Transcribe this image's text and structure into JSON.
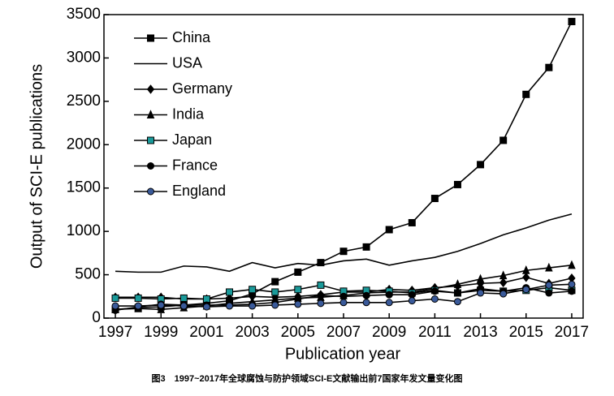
{
  "chart_data": {
    "type": "line",
    "caption": "图3　1997~2017年全球腐蚀与防护领域SCI-E文献输出前7国家年发文量变化图",
    "x_label": "Publication year",
    "y_label": "Output of SCI-E publications",
    "x": [
      1997,
      1998,
      1999,
      2000,
      2001,
      2002,
      2003,
      2004,
      2005,
      2006,
      2007,
      2008,
      2009,
      2010,
      2011,
      2012,
      2013,
      2014,
      2015,
      2016,
      2017
    ],
    "xlim": [
      1996.5,
      2017.5
    ],
    "xticks": [
      1997,
      1999,
      2001,
      2003,
      2005,
      2007,
      2009,
      2011,
      2013,
      2015,
      2017
    ],
    "ylim": [
      0,
      3500
    ],
    "yticks": [
      0,
      500,
      1000,
      1500,
      2000,
      2500,
      3000,
      3500
    ],
    "legend": "upper left",
    "series": [
      {
        "name": "China",
        "color": "#000000",
        "marker": "square",
        "values": [
          100,
          120,
          130,
          150,
          170,
          200,
          280,
          420,
          530,
          640,
          770,
          820,
          1020,
          1100,
          1380,
          1540,
          1770,
          2050,
          2580,
          2890,
          3420
        ]
      },
      {
        "name": "USA",
        "color": "#000000",
        "marker": "none",
        "values": [
          540,
          530,
          530,
          600,
          590,
          540,
          640,
          580,
          630,
          610,
          660,
          680,
          610,
          660,
          700,
          770,
          860,
          960,
          1040,
          1130,
          1200
        ]
      },
      {
        "name": "Germany",
        "color": "#000000",
        "marker": "diamond",
        "values": [
          240,
          240,
          240,
          220,
          220,
          230,
          250,
          240,
          250,
          270,
          300,
          300,
          330,
          320,
          350,
          370,
          400,
          410,
          470,
          400,
          460
        ]
      },
      {
        "name": "India",
        "color": "#000000",
        "marker": "triangle",
        "values": [
          100,
          110,
          100,
          120,
          140,
          170,
          190,
          210,
          230,
          240,
          260,
          290,
          300,
          300,
          340,
          390,
          450,
          490,
          550,
          580,
          610
        ]
      },
      {
        "name": "Japan",
        "color": "#1a9a9a",
        "marker": "square",
        "values": [
          230,
          230,
          220,
          230,
          220,
          300,
          330,
          300,
          330,
          380,
          310,
          320,
          310,
          290,
          320,
          290,
          320,
          310,
          320,
          350,
          320
        ]
      },
      {
        "name": "France",
        "color": "#000000",
        "marker": "circle",
        "values": [
          90,
          130,
          160,
          150,
          150,
          150,
          160,
          180,
          220,
          260,
          250,
          260,
          270,
          270,
          310,
          290,
          340,
          310,
          350,
          290,
          310
        ]
      },
      {
        "name": "England",
        "color": "#3a5a9a",
        "marker": "circle",
        "values": [
          140,
          140,
          150,
          140,
          130,
          140,
          140,
          150,
          160,
          170,
          180,
          180,
          180,
          200,
          220,
          190,
          290,
          280,
          330,
          380,
          390
        ]
      }
    ]
  }
}
